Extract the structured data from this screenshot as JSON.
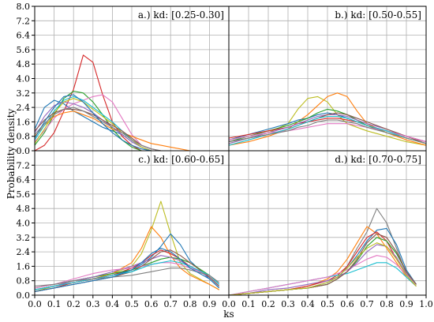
{
  "chart_data": {
    "type": "line",
    "xlabel": "ks",
    "ylabel": "Probability density",
    "xlim": [
      0.0,
      1.0
    ],
    "ylim": [
      0.0,
      8.0
    ],
    "xticks": [
      "0.0",
      "0.1",
      "0.2",
      "0.3",
      "0.4",
      "0.5",
      "0.6",
      "0.7",
      "0.8",
      "0.9",
      "1.0"
    ],
    "yticks": [
      "0.0",
      "0.8",
      "1.6",
      "2.4",
      "3.2",
      "4.0",
      "4.8",
      "5.6",
      "6.4",
      "7.2",
      "8.0"
    ],
    "grid": true,
    "colors": [
      "#1f77b4",
      "#ff7f0e",
      "#2ca02c",
      "#d62728",
      "#9467bd",
      "#8c564b",
      "#e377c2",
      "#7f7f7f",
      "#bcbd22",
      "#17becf"
    ],
    "panels": [
      {
        "title": "a.) kd: [0.25-0.30]",
        "x": [
          0.0,
          0.05,
          0.1,
          0.15,
          0.2,
          0.25,
          0.3,
          0.35,
          0.4,
          0.45,
          0.5,
          0.55,
          0.6,
          0.65,
          0.7,
          0.75,
          0.8,
          0.85,
          0.9,
          0.95,
          1.0
        ],
        "series": [
          {
            "color": "#d62728",
            "values": [
              0.0,
              0.3,
              1.0,
              2.2,
              3.4,
              5.3,
              4.9,
              3.1,
              1.6,
              0.8,
              0.3,
              0.0,
              0.0,
              0.0,
              0.0,
              0.0,
              0.0,
              0.0,
              0.0,
              0.0,
              0.0
            ]
          },
          {
            "color": "#1f77b4",
            "values": [
              1.2,
              2.4,
              2.8,
              2.6,
              2.2,
              1.9,
              1.6,
              1.3,
              1.1,
              0.9,
              0.5,
              0.2,
              0.0,
              0.0,
              0.0,
              0.0,
              0.0,
              0.0,
              0.0,
              0.0,
              0.0
            ]
          },
          {
            "color": "#2ca02c",
            "values": [
              0.3,
              1.0,
              2.0,
              2.9,
              3.3,
              3.2,
              2.7,
              2.0,
              1.2,
              0.6,
              0.2,
              0.0,
              0.0,
              0.0,
              0.0,
              0.0,
              0.0,
              0.0,
              0.0,
              0.0,
              0.0
            ]
          },
          {
            "color": "#e377c2",
            "values": [
              0.5,
              1.1,
              1.8,
              2.3,
              2.6,
              2.8,
              3.0,
              3.1,
              2.7,
              1.8,
              0.9,
              0.3,
              0.1,
              0.0,
              0.0,
              0.0,
              0.0,
              0.0,
              0.0,
              0.0,
              0.0
            ]
          },
          {
            "color": "#ff7f0e",
            "values": [
              0.8,
              1.4,
              1.9,
              2.1,
              2.2,
              2.0,
              1.8,
              1.5,
              1.2,
              1.0,
              0.8,
              0.6,
              0.4,
              0.3,
              0.2,
              0.1,
              0.0,
              0.0,
              0.0,
              0.0,
              0.0
            ]
          },
          {
            "color": "#17becf",
            "values": [
              0.6,
              1.4,
              2.2,
              2.8,
              3.0,
              2.8,
              2.4,
              2.0,
              1.6,
              1.1,
              0.6,
              0.2,
              0.0,
              0.0,
              0.0,
              0.0,
              0.0,
              0.0,
              0.0,
              0.0,
              0.0
            ]
          },
          {
            "color": "#9467bd",
            "values": [
              1.0,
              1.9,
              2.5,
              2.7,
              2.6,
              2.4,
              2.1,
              1.7,
              1.3,
              0.9,
              0.5,
              0.2,
              0.0,
              0.0,
              0.0,
              0.0,
              0.0,
              0.0,
              0.0,
              0.0,
              0.0
            ]
          },
          {
            "color": "#bcbd22",
            "values": [
              0.4,
              1.2,
              2.1,
              2.7,
              2.9,
              2.7,
              2.3,
              1.9,
              1.5,
              1.0,
              0.6,
              0.2,
              0.0,
              0.0,
              0.0,
              0.0,
              0.0,
              0.0,
              0.0,
              0.0,
              0.0
            ]
          },
          {
            "color": "#8c564b",
            "values": [
              1.1,
              1.7,
              2.1,
              2.3,
              2.3,
              2.2,
              2.0,
              1.7,
              1.4,
              1.1,
              0.7,
              0.3,
              0.1,
              0.0,
              0.0,
              0.0,
              0.0,
              0.0,
              0.0,
              0.0,
              0.0
            ]
          },
          {
            "color": "#7f7f7f",
            "values": [
              0.9,
              1.5,
              2.0,
              2.3,
              2.4,
              2.2,
              1.9,
              1.6,
              1.3,
              1.0,
              0.6,
              0.3,
              0.1,
              0.0,
              0.0,
              0.0,
              0.0,
              0.0,
              0.0,
              0.0,
              0.0
            ]
          },
          {
            "color": "#1f77b4",
            "values": [
              0.7,
              1.6,
              2.4,
              3.0,
              3.1,
              2.7,
              2.1,
              1.5,
              1.0,
              0.6,
              0.3,
              0.1,
              0.0,
              0.0,
              0.0,
              0.0,
              0.0,
              0.0,
              0.0,
              0.0,
              0.0
            ]
          }
        ]
      },
      {
        "title": "b.) kd: [0.50-0.55]",
        "x": [
          0.0,
          0.1,
          0.2,
          0.3,
          0.35,
          0.4,
          0.45,
          0.5,
          0.55,
          0.6,
          0.65,
          0.7,
          0.8,
          0.9,
          1.0
        ],
        "series": [
          {
            "color": "#bcbd22",
            "values": [
              0.4,
              0.7,
              1.0,
              1.5,
              2.3,
              2.9,
              3.0,
              2.7,
              2.0,
              1.5,
              1.3,
              1.1,
              0.8,
              0.5,
              0.3
            ]
          },
          {
            "color": "#ff7f0e",
            "values": [
              0.3,
              0.5,
              0.8,
              1.2,
              1.6,
              2.0,
              2.5,
              3.0,
              3.2,
              3.0,
              2.2,
              1.5,
              1.0,
              0.6,
              0.3
            ]
          },
          {
            "color": "#1f77b4",
            "values": [
              0.6,
              0.9,
              1.2,
              1.5,
              1.7,
              1.8,
              2.0,
              2.1,
              2.0,
              1.8,
              1.6,
              1.4,
              1.1,
              0.8,
              0.5
            ]
          },
          {
            "color": "#2ca02c",
            "values": [
              0.5,
              0.8,
              1.1,
              1.4,
              1.6,
              1.8,
              2.1,
              2.3,
              2.2,
              2.0,
              1.7,
              1.4,
              1.0,
              0.7,
              0.4
            ]
          },
          {
            "color": "#d62728",
            "values": [
              0.7,
              0.9,
              1.1,
              1.3,
              1.5,
              1.6,
              1.7,
              1.8,
              1.8,
              1.7,
              1.6,
              1.4,
              1.1,
              0.8,
              0.5
            ]
          },
          {
            "color": "#9467bd",
            "values": [
              0.4,
              0.7,
              1.0,
              1.3,
              1.5,
              1.7,
              1.9,
              2.0,
              2.0,
              1.9,
              1.7,
              1.5,
              1.2,
              0.8,
              0.5
            ]
          },
          {
            "color": "#8c564b",
            "values": [
              0.5,
              0.7,
              0.9,
              1.2,
              1.4,
              1.6,
              1.8,
              2.0,
              2.1,
              2.0,
              1.8,
              1.6,
              1.2,
              0.8,
              0.4
            ]
          },
          {
            "color": "#e377c2",
            "values": [
              0.6,
              0.8,
              1.0,
              1.1,
              1.2,
              1.3,
              1.4,
              1.5,
              1.5,
              1.5,
              1.4,
              1.3,
              1.1,
              0.8,
              0.5
            ]
          },
          {
            "color": "#17becf",
            "values": [
              0.3,
              0.6,
              0.9,
              1.2,
              1.4,
              1.6,
              1.8,
              1.9,
              1.9,
              1.8,
              1.6,
              1.4,
              1.1,
              0.7,
              0.4
            ]
          },
          {
            "color": "#7f7f7f",
            "values": [
              0.5,
              0.7,
              0.9,
              1.1,
              1.3,
              1.4,
              1.6,
              1.7,
              1.7,
              1.6,
              1.5,
              1.3,
              1.0,
              0.7,
              0.4
            ]
          }
        ]
      },
      {
        "title": "c.) kd: [0.60-0.65]",
        "x": [
          0.0,
          0.1,
          0.2,
          0.3,
          0.4,
          0.5,
          0.55,
          0.6,
          0.65,
          0.7,
          0.75,
          0.8,
          0.9,
          0.95
        ],
        "series": [
          {
            "color": "#bcbd22",
            "values": [
              0.2,
              0.5,
              0.8,
              1.0,
              1.2,
              1.6,
              2.3,
              3.6,
              5.2,
              3.4,
              1.8,
              1.2,
              0.6,
              0.3
            ]
          },
          {
            "color": "#ff7f0e",
            "values": [
              0.3,
              0.5,
              0.7,
              0.9,
              1.2,
              1.8,
              2.6,
              3.8,
              3.2,
              2.2,
              1.5,
              1.1,
              0.6,
              0.3
            ]
          },
          {
            "color": "#1f77b4",
            "values": [
              0.3,
              0.5,
              0.7,
              0.9,
              1.1,
              1.4,
              1.7,
              2.1,
              2.7,
              3.4,
              2.8,
              1.9,
              0.9,
              0.4
            ]
          },
          {
            "color": "#d62728",
            "values": [
              0.2,
              0.4,
              0.7,
              0.9,
              1.1,
              1.5,
              1.8,
              2.2,
              2.5,
              2.3,
              2.0,
              1.6,
              1.0,
              0.5
            ]
          },
          {
            "color": "#2ca02c",
            "values": [
              0.4,
              0.6,
              0.8,
              1.0,
              1.2,
              1.4,
              1.6,
              1.8,
              2.0,
              2.1,
              2.0,
              1.8,
              1.1,
              0.6
            ]
          },
          {
            "color": "#9467bd",
            "values": [
              0.3,
              0.5,
              0.8,
              1.0,
              1.3,
              1.6,
              1.8,
              2.0,
              2.2,
              2.1,
              1.9,
              1.6,
              1.0,
              0.5
            ]
          },
          {
            "color": "#e377c2",
            "values": [
              0.4,
              0.6,
              0.9,
              1.2,
              1.4,
              1.5,
              1.6,
              1.7,
              1.8,
              1.8,
              1.7,
              1.5,
              1.1,
              0.6
            ]
          },
          {
            "color": "#8c564b",
            "values": [
              0.2,
              0.4,
              0.6,
              0.8,
              1.0,
              1.3,
              1.6,
              2.0,
              2.4,
              2.5,
              2.2,
              1.8,
              1.0,
              0.5
            ]
          },
          {
            "color": "#17becf",
            "values": [
              0.3,
              0.5,
              0.7,
              0.9,
              1.1,
              1.3,
              1.5,
              1.7,
              1.8,
              1.9,
              1.8,
              1.6,
              1.1,
              0.6
            ]
          },
          {
            "color": "#7f7f7f",
            "values": [
              0.5,
              0.6,
              0.8,
              0.9,
              1.0,
              1.1,
              1.2,
              1.3,
              1.4,
              1.5,
              1.5,
              1.4,
              1.1,
              0.7
            ]
          },
          {
            "color": "#1f77b4",
            "values": [
              0.2,
              0.4,
              0.6,
              0.8,
              1.0,
              1.4,
              1.8,
              2.3,
              2.6,
              2.4,
              2.0,
              1.5,
              0.9,
              0.4
            ]
          }
        ]
      },
      {
        "title": "d.) kd: [0.70-0.75]",
        "x": [
          0.0,
          0.1,
          0.2,
          0.3,
          0.4,
          0.5,
          0.55,
          0.6,
          0.65,
          0.7,
          0.75,
          0.8,
          0.85,
          0.9,
          0.95
        ],
        "series": [
          {
            "color": "#7f7f7f",
            "values": [
              0.0,
              0.1,
              0.2,
              0.3,
              0.4,
              0.6,
              0.9,
              1.6,
              2.6,
              3.5,
              4.8,
              4.0,
              2.6,
              1.2,
              0.6
            ]
          },
          {
            "color": "#ff7f0e",
            "values": [
              0.0,
              0.1,
              0.2,
              0.3,
              0.5,
              0.9,
              1.3,
              2.0,
              2.9,
              3.8,
              3.4,
              2.6,
              1.8,
              1.0,
              0.5
            ]
          },
          {
            "color": "#1f77b4",
            "values": [
              0.0,
              0.1,
              0.2,
              0.3,
              0.4,
              0.7,
              1.0,
              1.5,
              2.2,
              3.0,
              3.6,
              3.7,
              2.8,
              1.4,
              0.6
            ]
          },
          {
            "color": "#d62728",
            "values": [
              0.0,
              0.1,
              0.2,
              0.3,
              0.5,
              0.8,
              1.1,
              1.6,
              2.4,
              3.2,
              3.5,
              3.0,
              2.0,
              1.1,
              0.5
            ]
          },
          {
            "color": "#2ca02c",
            "values": [
              0.0,
              0.1,
              0.2,
              0.3,
              0.4,
              0.6,
              0.9,
              1.3,
              1.9,
              2.7,
              3.2,
              3.0,
              2.3,
              1.3,
              0.6
            ]
          },
          {
            "color": "#17becf",
            "values": [
              0.0,
              0.2,
              0.4,
              0.6,
              0.8,
              1.0,
              1.1,
              1.2,
              1.4,
              1.6,
              1.8,
              1.8,
              1.5,
              1.0,
              0.5
            ]
          },
          {
            "color": "#e377c2",
            "values": [
              0.0,
              0.2,
              0.4,
              0.6,
              0.8,
              1.0,
              1.2,
              1.4,
              1.7,
              2.0,
              2.2,
              2.1,
              1.7,
              1.1,
              0.5
            ]
          },
          {
            "color": "#9467bd",
            "values": [
              0.0,
              0.1,
              0.3,
              0.4,
              0.6,
              0.8,
              1.0,
              1.3,
              1.8,
              2.4,
              2.8,
              2.7,
              2.1,
              1.2,
              0.6
            ]
          },
          {
            "color": "#8c564b",
            "values": [
              0.0,
              0.1,
              0.2,
              0.3,
              0.4,
              0.6,
              0.9,
              1.3,
              2.0,
              2.9,
              3.4,
              3.2,
              2.4,
              1.3,
              0.6
            ]
          },
          {
            "color": "#bcbd22",
            "values": [
              0.0,
              0.1,
              0.2,
              0.3,
              0.4,
              0.7,
              1.0,
              1.5,
              2.1,
              2.6,
              2.9,
              2.7,
              2.0,
              1.1,
              0.5
            ]
          }
        ]
      }
    ]
  }
}
